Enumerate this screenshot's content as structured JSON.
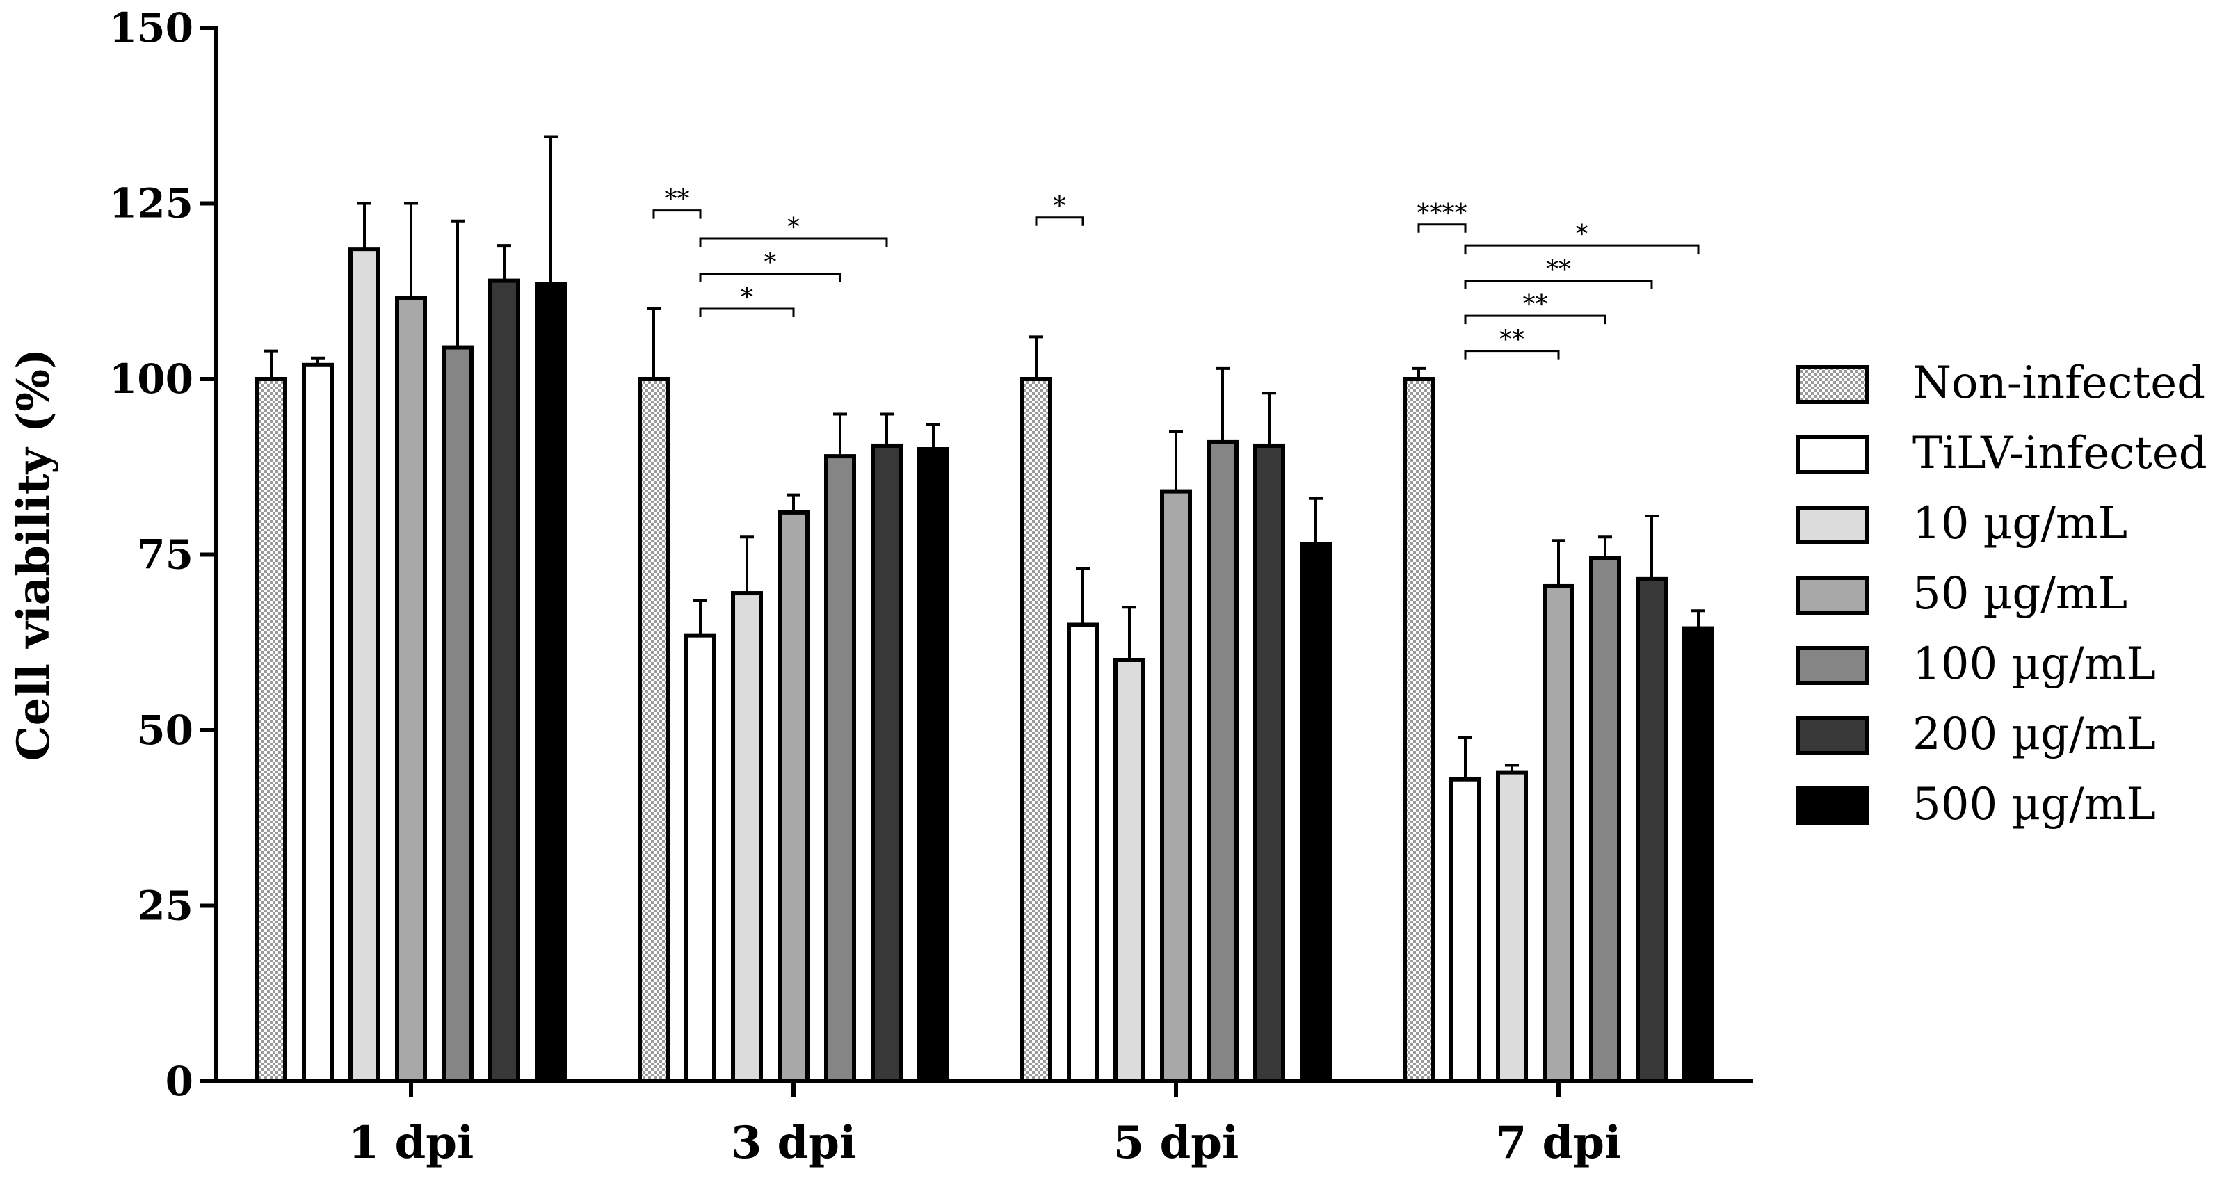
{
  "chart_data": {
    "type": "bar",
    "title": "",
    "xlabel": "",
    "ylabel": "Cell viability (%)",
    "ylim": [
      0,
      150
    ],
    "yticks": [
      0,
      25,
      50,
      75,
      100,
      125,
      150
    ],
    "grid": false,
    "legend_position": "right",
    "categories": [
      "1 dpi",
      "3 dpi",
      "5 dpi",
      "7 dpi"
    ],
    "series": [
      {
        "name": "Non-infected",
        "fill": "checker",
        "color": "#bdbdbd",
        "values": [
          100,
          100,
          100,
          100
        ],
        "errors": [
          4,
          10,
          6,
          1.5
        ]
      },
      {
        "name": "TiLV-infected",
        "fill": "solid",
        "color": "#ffffff",
        "values": [
          102,
          63.5,
          65,
          43
        ],
        "errors": [
          1,
          5,
          8,
          6
        ]
      },
      {
        "name": "10 µg/mL",
        "fill": "solid",
        "color": "#dcdcdc",
        "values": [
          118.5,
          69.5,
          60,
          44
        ],
        "errors": [
          6.5,
          8,
          7.5,
          1
        ]
      },
      {
        "name": "50 µg/mL",
        "fill": "solid",
        "color": "#a8a8a8",
        "values": [
          111.5,
          81,
          84,
          70.5
        ],
        "errors": [
          13.5,
          2.5,
          8.5,
          6.5
        ]
      },
      {
        "name": "100 µg/mL",
        "fill": "solid",
        "color": "#858585",
        "values": [
          104.5,
          89,
          91,
          74.5
        ],
        "errors": [
          18,
          6,
          10.5,
          3
        ]
      },
      {
        "name": "200 µg/mL",
        "fill": "solid",
        "color": "#383838",
        "values": [
          114,
          90.5,
          90.5,
          71.5
        ],
        "errors": [
          5,
          4.5,
          7.5,
          9
        ]
      },
      {
        "name": "500 µg/mL",
        "fill": "solid",
        "color": "#000000",
        "values": [
          113.5,
          90,
          76.5,
          64.5
        ],
        "errors": [
          21,
          3.5,
          6.5,
          2.5
        ]
      }
    ],
    "annotations": [
      {
        "category": 1,
        "from_series": 0,
        "to_series": 1,
        "y": 124,
        "label": "**"
      },
      {
        "category": 1,
        "from_series": 1,
        "to_series": 3,
        "y": 110,
        "label": "*"
      },
      {
        "category": 1,
        "from_series": 1,
        "to_series": 4,
        "y": 115,
        "label": "*"
      },
      {
        "category": 1,
        "from_series": 1,
        "to_series": 5,
        "y": 120,
        "label": "*"
      },
      {
        "category": 2,
        "from_series": 0,
        "to_series": 1,
        "y": 123,
        "label": "*"
      },
      {
        "category": 3,
        "from_series": 0,
        "to_series": 1,
        "y": 122,
        "label": "****"
      },
      {
        "category": 3,
        "from_series": 1,
        "to_series": 3,
        "y": 104,
        "label": "**"
      },
      {
        "category": 3,
        "from_series": 1,
        "to_series": 4,
        "y": 109,
        "label": "**"
      },
      {
        "category": 3,
        "from_series": 1,
        "to_series": 5,
        "y": 114,
        "label": "**"
      },
      {
        "category": 3,
        "from_series": 1,
        "to_series": 6,
        "y": 119,
        "label": "*"
      }
    ]
  }
}
